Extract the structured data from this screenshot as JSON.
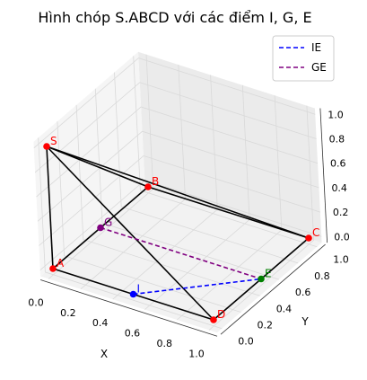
{
  "chart_data": {
    "type": "line3d",
    "title": "Hình chóp S.ABCD với các điểm I, G, E",
    "xlabel": "X",
    "ylabel": "Y",
    "zlabel": "",
    "xlim": [
      0.0,
      1.0
    ],
    "ylim": [
      0.0,
      1.0
    ],
    "zlim": [
      0.0,
      1.0
    ],
    "x_ticks": [
      "0.0",
      "0.2",
      "0.4",
      "0.6",
      "0.8",
      "1.0"
    ],
    "y_ticks": [
      "0.0",
      "0.2",
      "0.4",
      "0.6",
      "0.8",
      "1.0"
    ],
    "z_ticks": [
      "0.0",
      "0.2",
      "0.4",
      "0.6",
      "0.8",
      "1.0"
    ],
    "grid": true,
    "legend_position": "top-right",
    "points": [
      {
        "label": "S",
        "x": 0.0,
        "y": 0.0,
        "z": 1.0,
        "color": "#ff0000"
      },
      {
        "label": "A",
        "x": 0.0,
        "y": 0.0,
        "z": 0.0,
        "color": "#ff0000"
      },
      {
        "label": "B",
        "x": 0.0,
        "y": 1.0,
        "z": 0.0,
        "color": "#ff0000"
      },
      {
        "label": "C",
        "x": 1.0,
        "y": 1.0,
        "z": 0.0,
        "color": "#ff0000"
      },
      {
        "label": "D",
        "x": 1.0,
        "y": 0.0,
        "z": 0.0,
        "color": "#ff0000"
      },
      {
        "label": "I",
        "x": 0.5,
        "y": 0.0,
        "z": 0.0,
        "color": "#0000ff"
      },
      {
        "label": "G",
        "x": 0.0,
        "y": 0.5,
        "z": 0.0,
        "color": "#800080"
      },
      {
        "label": "E",
        "x": 1.0,
        "y": 0.5,
        "z": 0.0,
        "color": "#008000"
      }
    ],
    "edges": [
      [
        "S",
        "A"
      ],
      [
        "S",
        "B"
      ],
      [
        "S",
        "C"
      ],
      [
        "S",
        "D"
      ],
      [
        "A",
        "B"
      ],
      [
        "B",
        "C"
      ],
      [
        "C",
        "D"
      ],
      [
        "D",
        "A"
      ]
    ],
    "series": [
      {
        "name": "IE",
        "color": "#0000ff",
        "dash": "dashed",
        "from": "I",
        "to": "E"
      },
      {
        "name": "GE",
        "color": "#800080",
        "dash": "dashed",
        "from": "G",
        "to": "E"
      }
    ]
  }
}
